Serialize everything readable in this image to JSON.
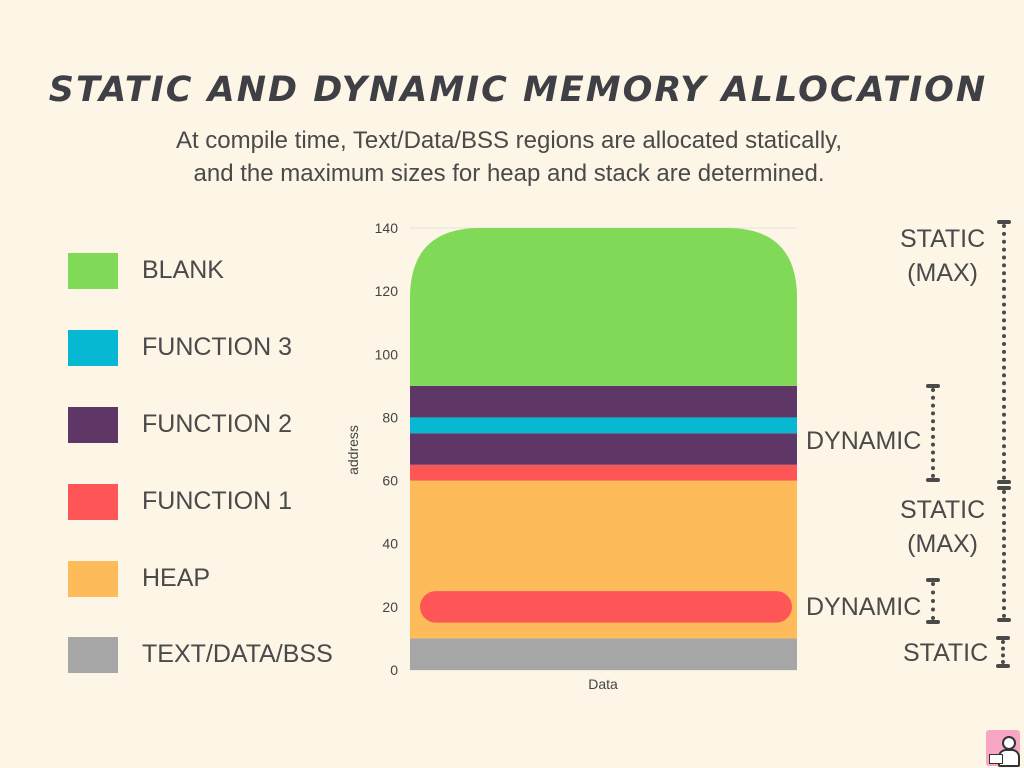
{
  "header": {
    "title": "STATIC AND DYNAMIC MEMORY ALLOCATION",
    "subtitle_line1": "At compile time, Text/Data/BSS regions are allocated statically,",
    "subtitle_line2": "and the maximum sizes for heap and stack are determined."
  },
  "legend": [
    {
      "label": "BLANK",
      "color": "#80da58"
    },
    {
      "label": "FUNCTION 3",
      "color": "#06b8d2"
    },
    {
      "label": "FUNCTION 2",
      "color": "#5e3766"
    },
    {
      "label": "FUNCTION 1",
      "color": "#fe5656"
    },
    {
      "label": "HEAP",
      "color": "#fdbb5a"
    },
    {
      "label": "TEXT/DATA/BSS",
      "color": "#a6a6a6"
    }
  ],
  "chart_data": {
    "type": "bar",
    "stacked": true,
    "categories": [
      "Data"
    ],
    "xlabel": "Data",
    "ylabel": "address",
    "ylim": [
      0,
      140
    ],
    "yticks": [
      0,
      20,
      40,
      60,
      80,
      100,
      120,
      140
    ],
    "segments": [
      {
        "name": "TEXT/DATA/BSS",
        "from": 0,
        "to": 10,
        "color": "#a6a6a6"
      },
      {
        "name": "HEAP",
        "from": 10,
        "to": 60,
        "color": "#fdbb5a"
      },
      {
        "name": "FUNCTION 1",
        "from": 60,
        "to": 65,
        "color": "#fe5656"
      },
      {
        "name": "FUNCTION 2",
        "from": 65,
        "to": 75,
        "color": "#5e3766"
      },
      {
        "name": "FUNCTION 3",
        "from": 75,
        "to": 80,
        "color": "#06b8d2"
      },
      {
        "name": "FUNCTION 2",
        "from": 80,
        "to": 90,
        "color": "#5e3766"
      },
      {
        "name": "BLANK",
        "from": 90,
        "to": 140,
        "color": "#80da58"
      }
    ],
    "heap_allocation": {
      "from": 15,
      "to": 25,
      "color": "#fe5656"
    }
  },
  "annotations": {
    "static_top": "STATIC\n(MAX)",
    "dynamic_top": "DYNAMIC",
    "static_mid": "STATIC\n(MAX)",
    "dynamic_bottom": "DYNAMIC",
    "static_bottom": "STATIC"
  },
  "colors": {
    "background": "#fdf6e7",
    "text": "#4a4a4a",
    "gridline": "#e6e2d8"
  },
  "icons": {
    "brand": "person-at-laptop-logo-icon"
  }
}
